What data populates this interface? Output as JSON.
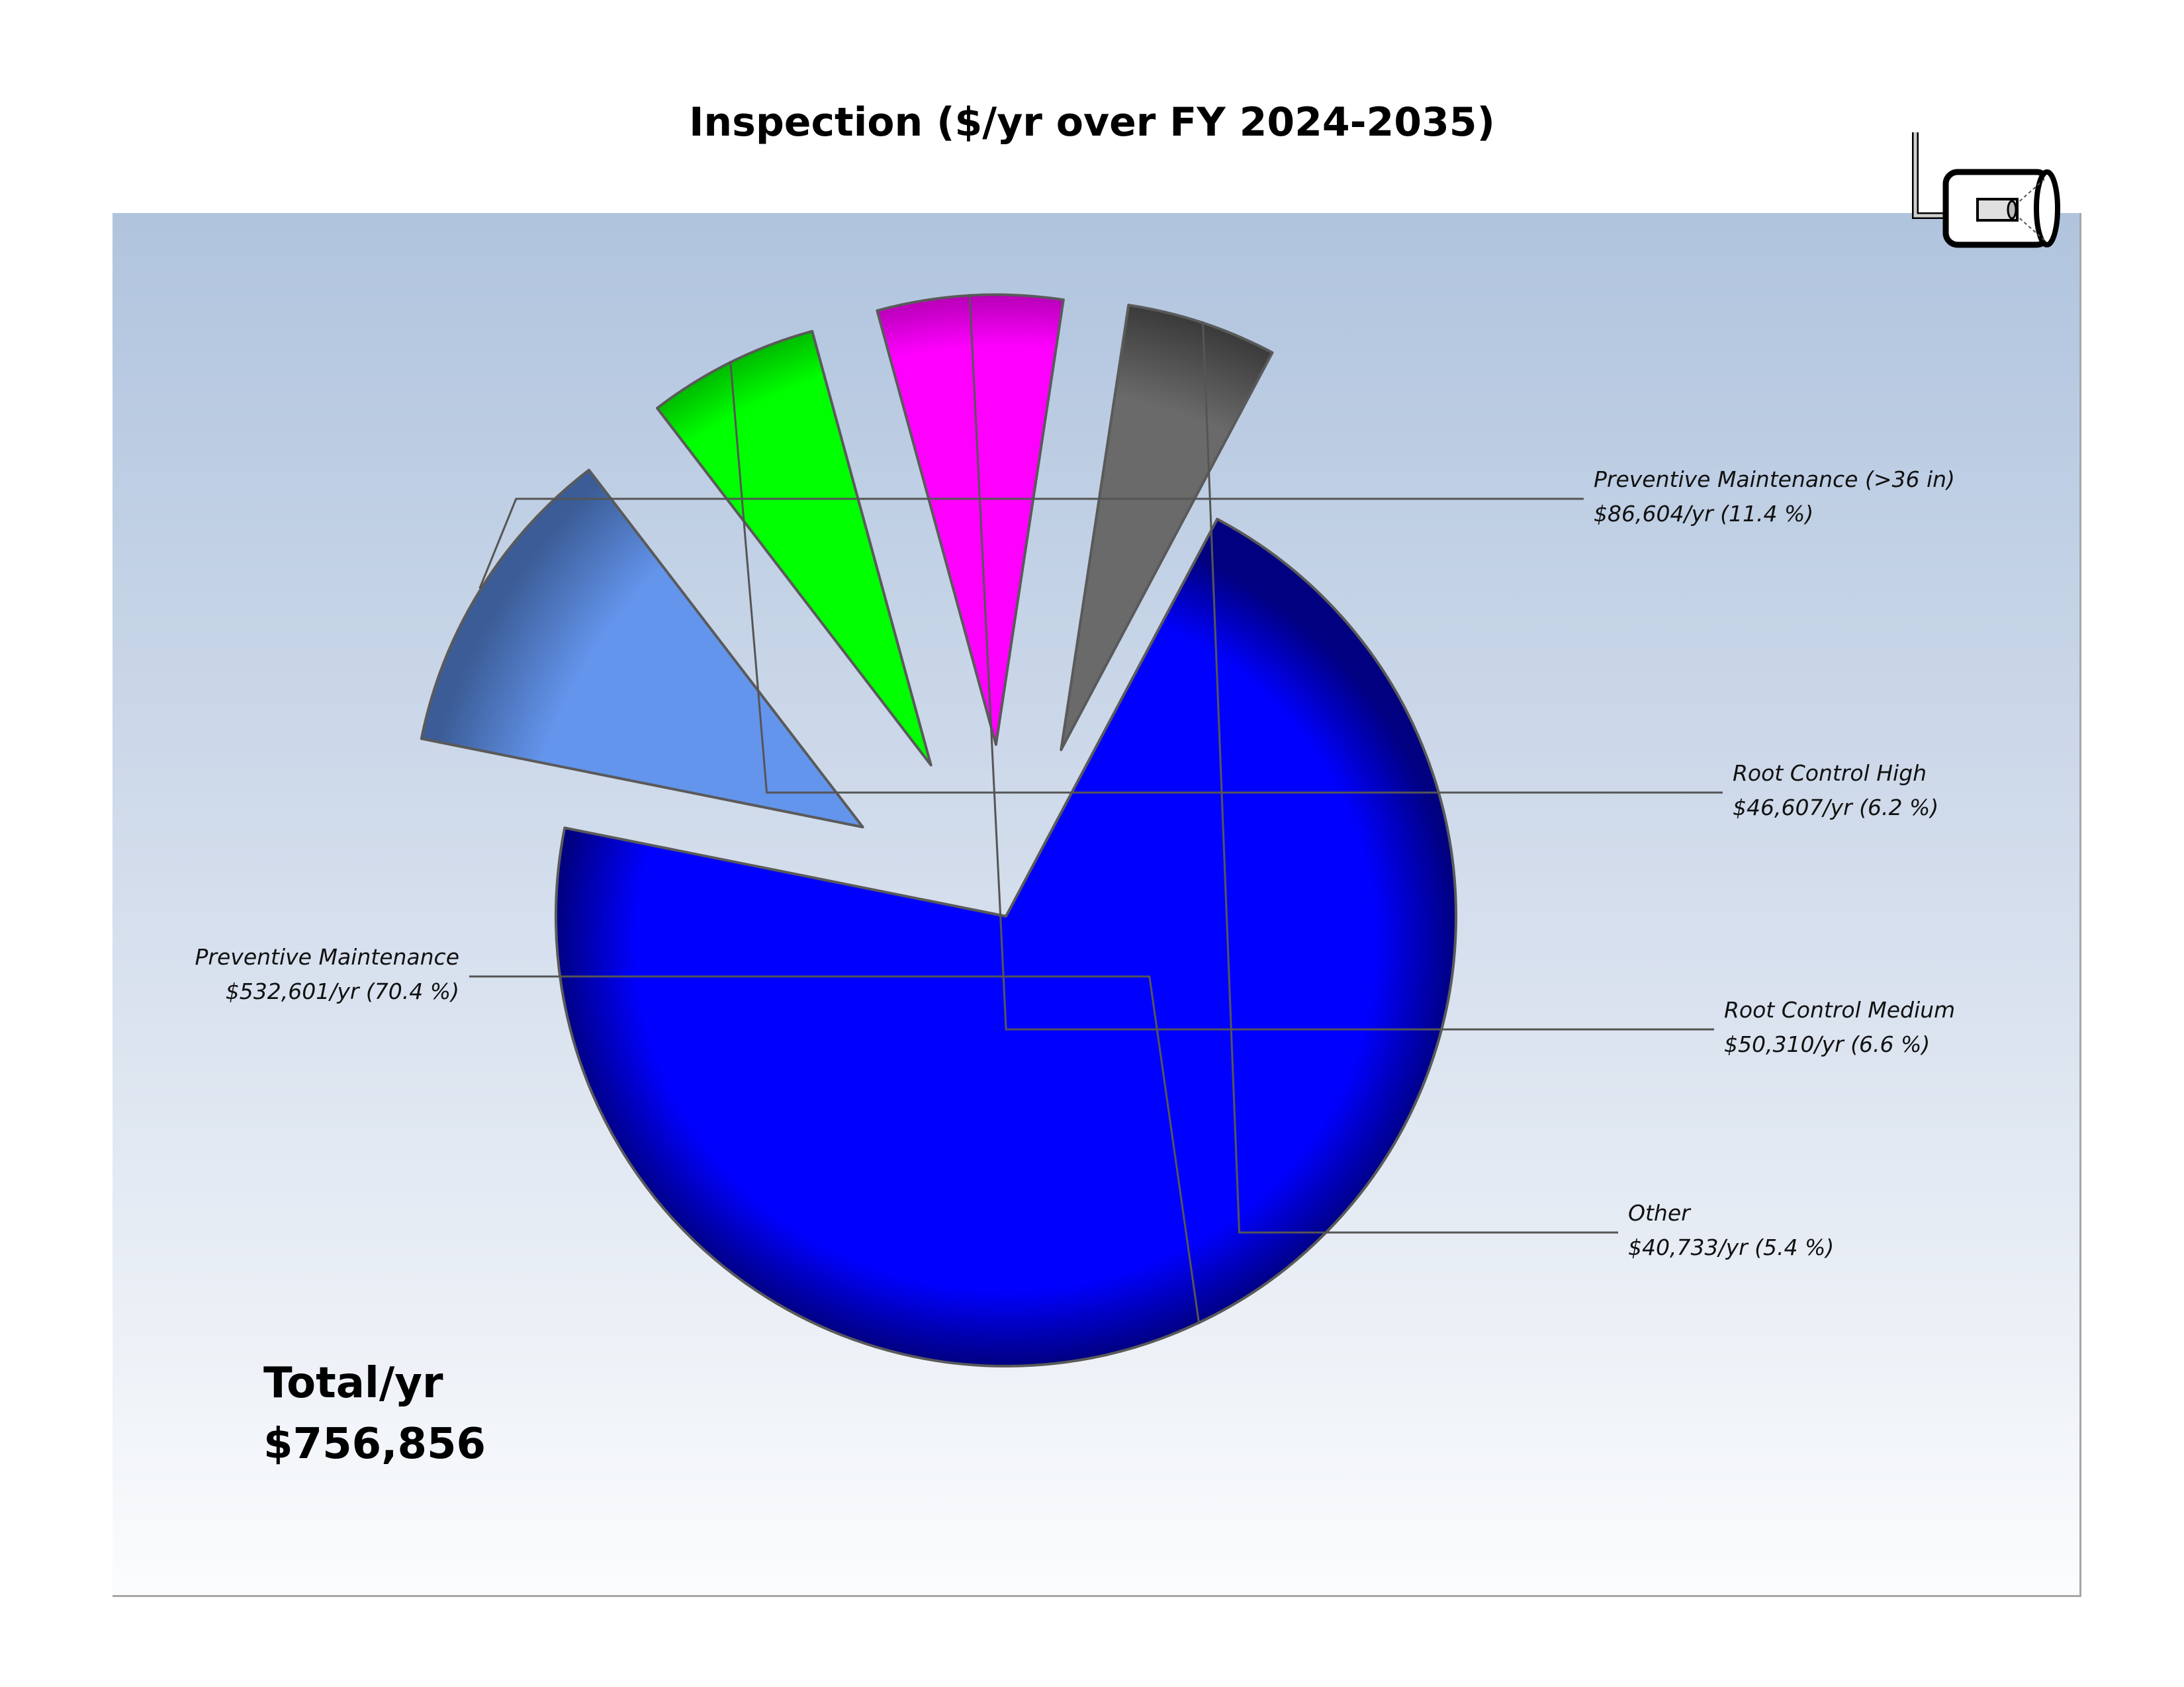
{
  "chart_data": {
    "type": "pie",
    "title": "Inspection ($/yr over FY 2024-2035)",
    "total_label": "Total/yr",
    "total_value": "$756,856",
    "slices": [
      {
        "name": "Preventive Maintenance",
        "value": 532601,
        "percent": 70.4,
        "value_label": "$532,601/yr (70.4 %)",
        "color": "#0000ff",
        "exploded": false
      },
      {
        "name": "Preventive Maintenance (>36 in)",
        "value": 86604,
        "percent": 11.4,
        "value_label": "$86,604/yr (11.4 %)",
        "color": "#6495ed",
        "exploded": true
      },
      {
        "name": "Root Control High",
        "value": 46607,
        "percent": 6.2,
        "value_label": "$46,607/yr (6.2 %)",
        "color": "#00ff00",
        "exploded": true
      },
      {
        "name": "Root Control Medium",
        "value": 50310,
        "percent": 6.6,
        "value_label": "$50,310/yr (6.6 %)",
        "color": "#ff00ff",
        "exploded": true
      },
      {
        "name": "Other",
        "value": 40733,
        "percent": 5.4,
        "value_label": "$40,733/yr (5.4 %)",
        "color": "#696969",
        "exploded": true
      }
    ],
    "legend": "none",
    "grid": false
  },
  "logo": {
    "icon": "sewer-inspection-camera-icon"
  }
}
